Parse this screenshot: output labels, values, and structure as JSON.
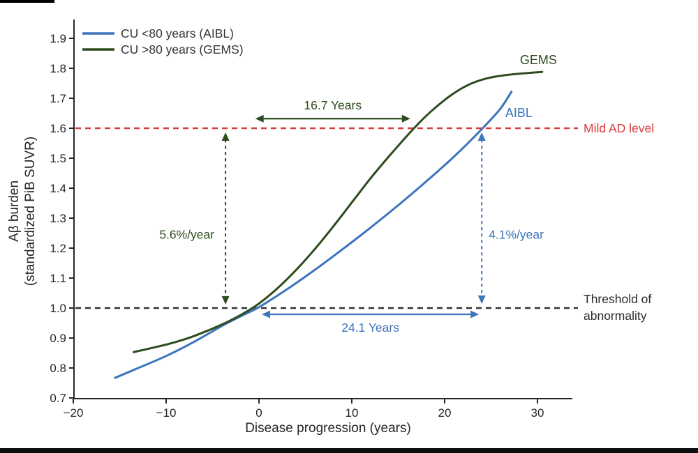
{
  "page": {
    "background": "#ffffff",
    "top_left_bar_color": "#000000",
    "bottom_bar_color": "#0d0d0d"
  },
  "chart_data": {
    "type": "line",
    "title": "",
    "xlabel": "Disease progression (years)",
    "ylabel_lines": [
      "Aβ burden",
      "(standardized PiB SUVR)"
    ],
    "xlim": [
      -20,
      34
    ],
    "ylim": [
      0.7,
      1.96
    ],
    "grid": false,
    "x_ticks": [
      -20,
      -10,
      0,
      10,
      20,
      30
    ],
    "y_ticks": [
      0.7,
      0.8,
      0.9,
      1.0,
      1.1,
      1.2,
      1.3,
      1.4,
      1.5,
      1.6,
      1.7,
      1.8,
      1.9
    ],
    "axis_color": "#262626",
    "legend_position": "top-left",
    "legend": [
      {
        "label": "CU <80 years (AIBL)",
        "color": "#3c74bd"
      },
      {
        "label": "CU >80 years (GEMS)",
        "color": "#2d4c1e"
      }
    ],
    "series": [
      {
        "name": "CU <80 years (AIBL)",
        "end_label": "AIBL",
        "end_label_pos": [
          28.0,
          1.651
        ],
        "color": "#3c74bd",
        "points": [
          [
            -15.5,
            0.767
          ],
          [
            -13,
            0.8
          ],
          [
            -10,
            0.84
          ],
          [
            -7,
            0.887
          ],
          [
            -4,
            0.94
          ],
          [
            -2,
            0.972
          ],
          [
            0,
            1.003
          ],
          [
            3,
            1.062
          ],
          [
            6,
            1.127
          ],
          [
            9,
            1.196
          ],
          [
            12,
            1.268
          ],
          [
            15,
            1.343
          ],
          [
            18,
            1.422
          ],
          [
            21,
            1.505
          ],
          [
            24.1,
            1.6
          ],
          [
            26,
            1.665
          ],
          [
            27.2,
            1.722
          ]
        ]
      },
      {
        "name": "CU >80 years (GEMS)",
        "end_label": "GEMS",
        "end_label_pos": [
          30.1,
          1.828
        ],
        "color": "#2d4c1e",
        "points": [
          [
            -13.5,
            0.853
          ],
          [
            -11.5,
            0.867
          ],
          [
            -9.5,
            0.882
          ],
          [
            -7.5,
            0.901
          ],
          [
            -5.5,
            0.925
          ],
          [
            -3.5,
            0.952
          ],
          [
            -1.5,
            0.985
          ],
          [
            0,
            1.015
          ],
          [
            2,
            1.066
          ],
          [
            4,
            1.127
          ],
          [
            6,
            1.196
          ],
          [
            8,
            1.272
          ],
          [
            10,
            1.352
          ],
          [
            12,
            1.432
          ],
          [
            14,
            1.506
          ],
          [
            16.7,
            1.6
          ],
          [
            18.5,
            1.655
          ],
          [
            20.5,
            1.706
          ],
          [
            22.5,
            1.744
          ],
          [
            24.5,
            1.766
          ],
          [
            26.5,
            1.777
          ],
          [
            28.5,
            1.783
          ],
          [
            30.5,
            1.788
          ]
        ]
      }
    ],
    "reference_lines": [
      {
        "id": "mild-ad",
        "label_lines": [
          "Mild AD level"
        ],
        "value": 1.6,
        "color": "#d93b3b"
      },
      {
        "id": "threshold",
        "label_lines": [
          "Threshold of",
          "abnormality"
        ],
        "value": 1.0,
        "color": "#333333",
        "label_color": "#2b2b2b"
      }
    ],
    "annotations": [
      {
        "id": "gems-years",
        "text": "16.7 Years",
        "type": "h-arrow",
        "color": "#2d4c1e",
        "x1": -0.4,
        "x2": 16.3,
        "y": 1.632,
        "label_side": "above"
      },
      {
        "id": "aibl-years",
        "text": "24.1 Years",
        "type": "h-arrow",
        "color": "#3c74bd",
        "x1": 0.3,
        "x2": 23.7,
        "y": 0.979,
        "label_side": "below"
      },
      {
        "id": "gems-rate",
        "text": "5.6%/year",
        "type": "v-arrow",
        "color": "#2d4c1e",
        "line_color": "#3c3c3c",
        "x": -3.6,
        "y1": 1.586,
        "y2": 1.012,
        "label_v": 1.245,
        "label_side": "left"
      },
      {
        "id": "aibl-rate",
        "text": "4.1%/year",
        "type": "v-arrow",
        "color": "#3c74bd",
        "line_color": "#3c74bd",
        "x": 24.0,
        "y1": 1.586,
        "y2": 1.014,
        "label_v": 1.245,
        "label_side": "right"
      }
    ]
  }
}
